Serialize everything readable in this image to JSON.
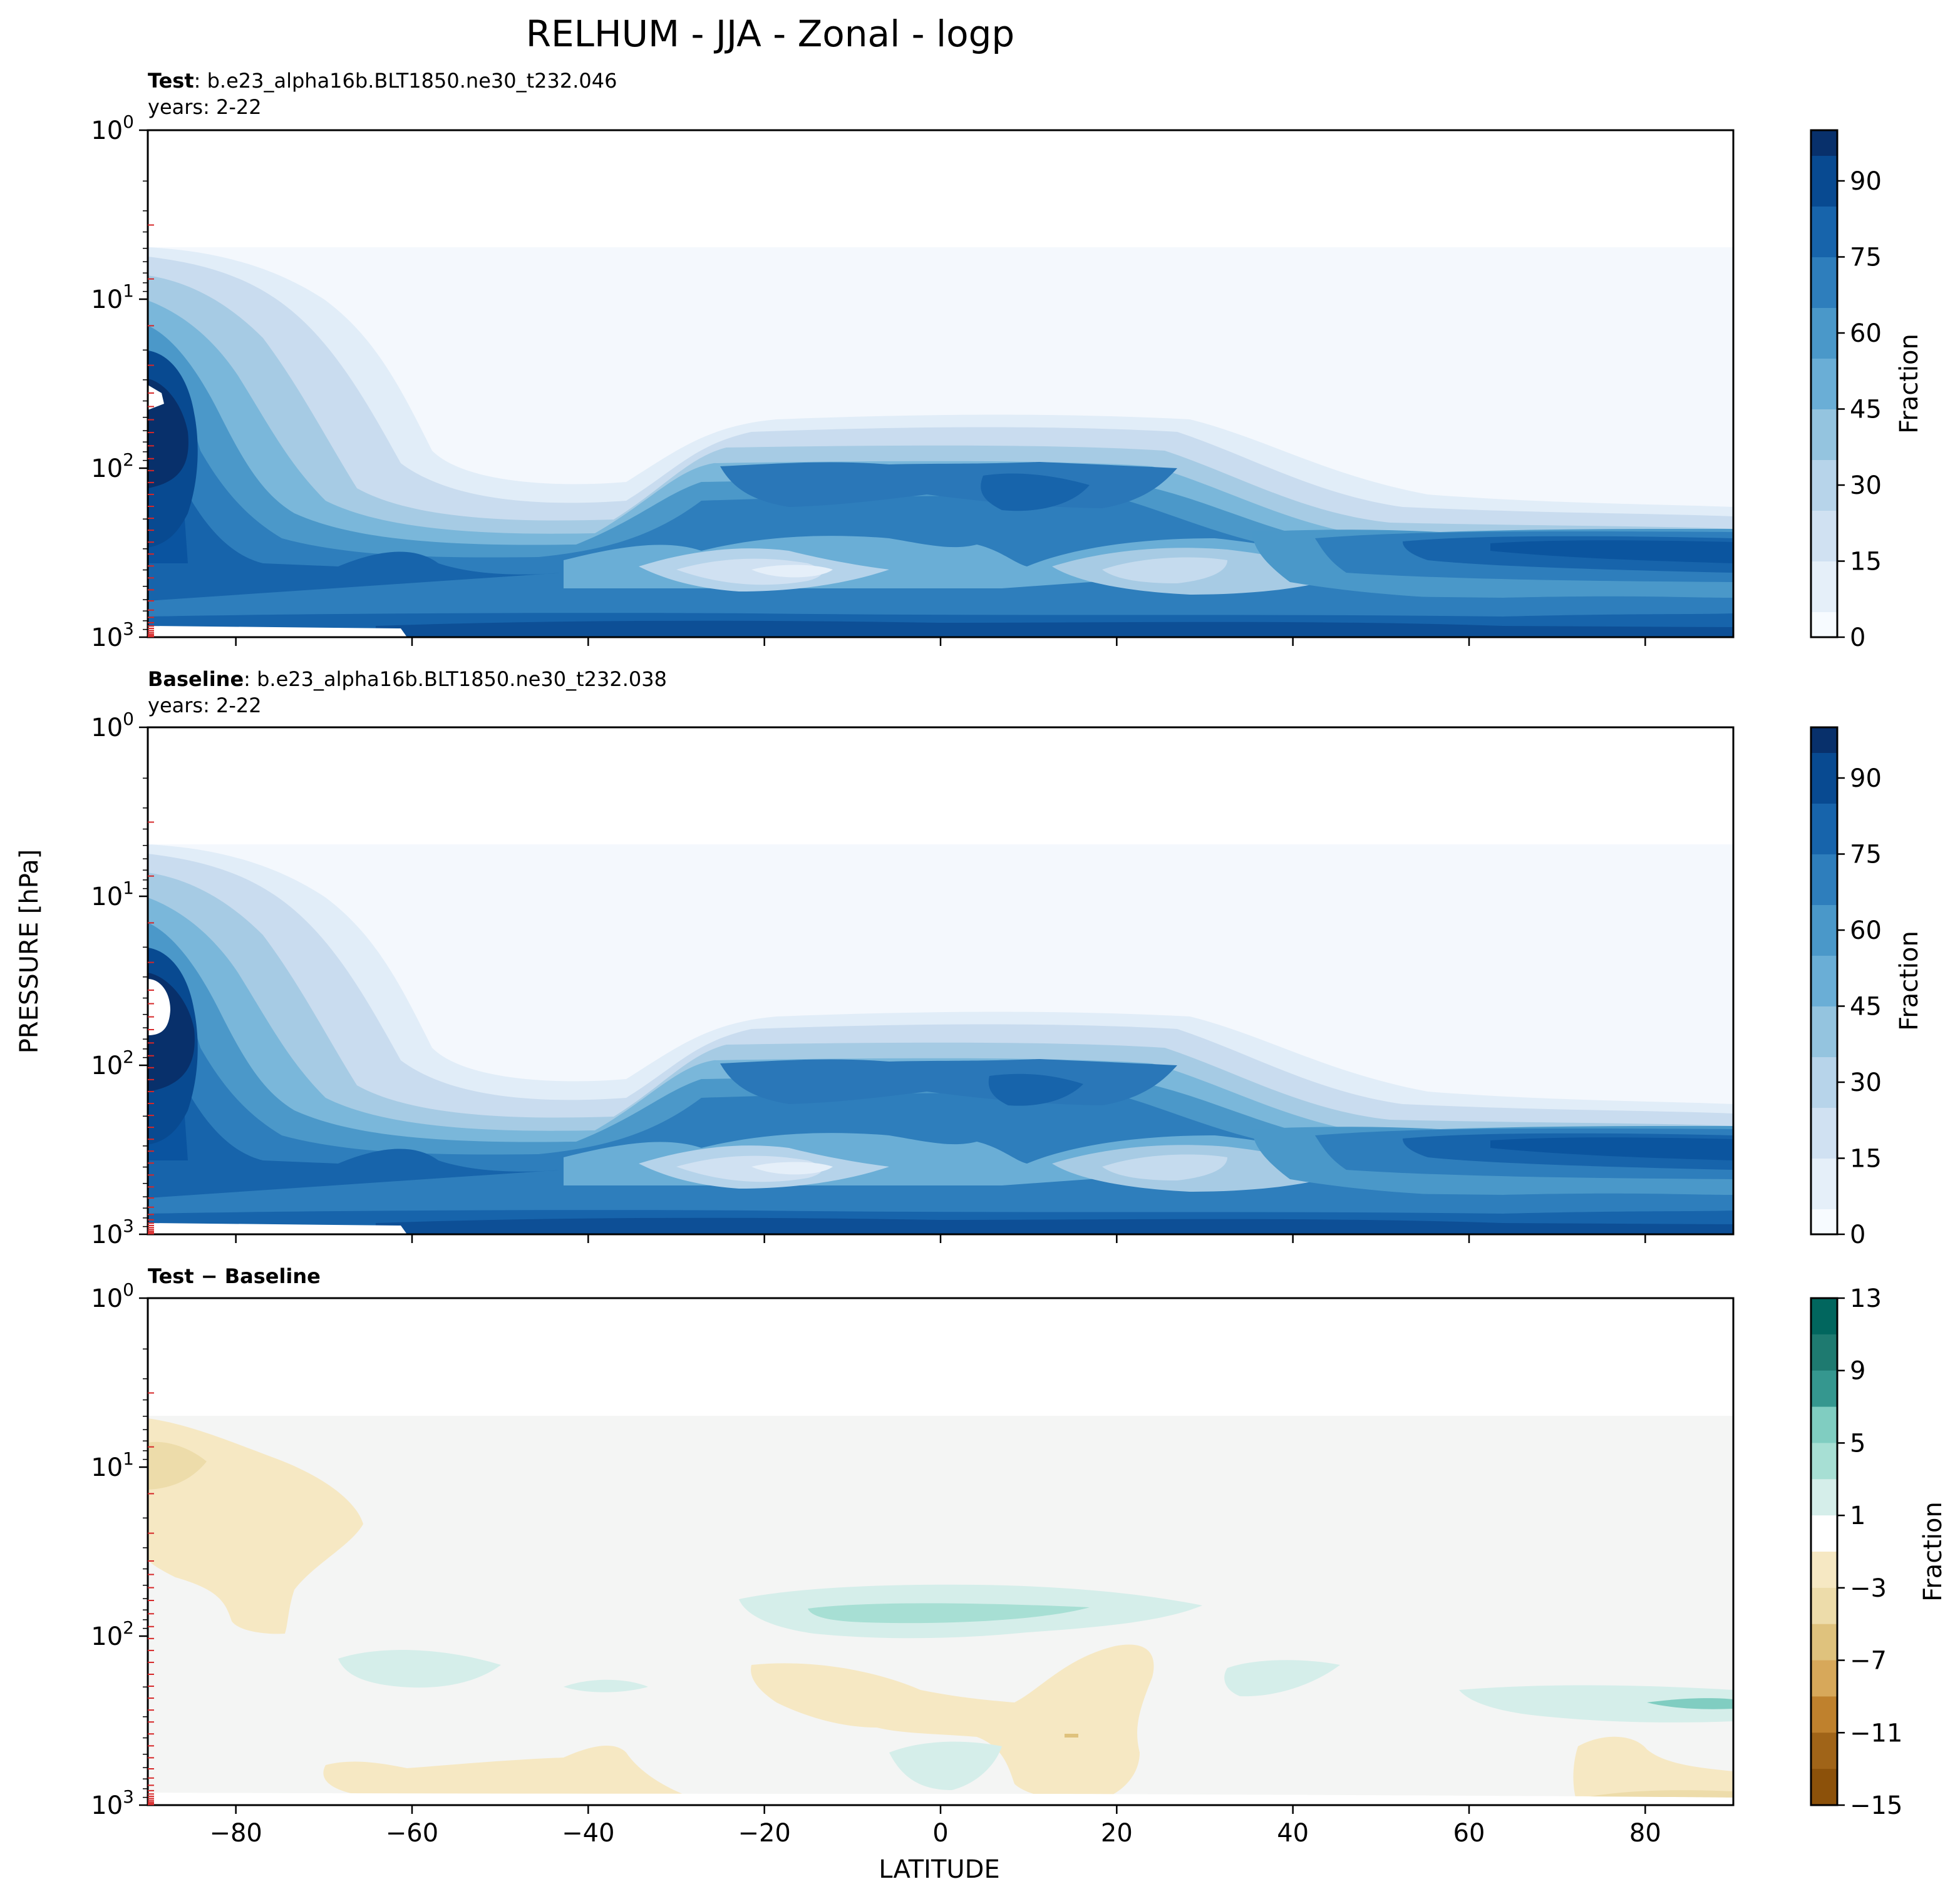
{
  "figure": {
    "title": "RELHUM - JJA - Zonal - logp"
  },
  "axes": {
    "ylabel": "PRESSURE [hPa]",
    "xlabel": "LATITUDE",
    "x_ticks": [
      "−80",
      "−60",
      "−40",
      "−20",
      "0",
      "20",
      "40",
      "60",
      "80"
    ],
    "y_tick_base": "10",
    "y_tick_exponents": [
      "0",
      "1",
      "2",
      "3"
    ]
  },
  "colors": {
    "blues": [
      "#f7fbff",
      "#e5eff9",
      "#d0e1f2",
      "#b7d4ea",
      "#94c4df",
      "#6aaed6",
      "#4a98c9",
      "#2e7ebc",
      "#1764ab",
      "#084a91",
      "#08306b"
    ],
    "diff": {
      "neg3": "#f6e8c3",
      "neg7": "#dfc27d",
      "neg11": "#bf812d",
      "neg15": "#8c510a",
      "zero": "#f4f5f4",
      "pos5": "#d5eeea",
      "pos9": "#80cdc1",
      "pos13": "#35978f"
    },
    "level_marks": "#d62728"
  },
  "chart_data": [
    {
      "type": "heatmap",
      "subtitle_bold": "Test",
      "subtitle_rest": ": b.e23_alpha16b.BLT1850.ne30_t232.046",
      "years": "years: 2-22",
      "x_range": [
        -90,
        90
      ],
      "y_range_hPa": [
        1,
        1000
      ],
      "y_scale": "log",
      "colorbar": {
        "label": "Fraction",
        "ticks": [
          "0",
          "15",
          "30",
          "45",
          "60",
          "75",
          "90"
        ],
        "range": [
          0,
          100
        ]
      },
      "features": [
        {
          "region": "upper atmosphere 5-50 hPa, south polar",
          "lat_range": [
            -90,
            -60
          ],
          "value_max": 96
        },
        {
          "region": "tropical tropopause layer ~100 hPa",
          "lat_range": [
            -20,
            30
          ],
          "value": 75
        },
        {
          "region": "subtropical mid-troposphere minima ~400 hPa",
          "lat_range": [
            -25,
            25
          ],
          "value": 25
        },
        {
          "region": "Arctic lower troposphere ~300 hPa",
          "lat_range": [
            60,
            90
          ],
          "value": 80
        },
        {
          "region": "boundary layer ~900 hPa",
          "lat_range": [
            -60,
            90
          ],
          "value": 85
        }
      ]
    },
    {
      "type": "heatmap",
      "subtitle_bold": "Baseline",
      "subtitle_rest": ": b.e23_alpha16b.BLT1850.ne30_t232.038",
      "years": "years: 2-22",
      "x_range": [
        -90,
        90
      ],
      "y_range_hPa": [
        1,
        1000
      ],
      "y_scale": "log",
      "colorbar": {
        "label": "Fraction",
        "ticks": [
          "0",
          "15",
          "30",
          "45",
          "60",
          "75",
          "90"
        ],
        "range": [
          0,
          100
        ]
      },
      "features": [
        {
          "region": "upper atmosphere 5-50 hPa, south polar",
          "lat_range": [
            -90,
            -60
          ],
          "value_max": 96
        },
        {
          "region": "tropical tropopause layer ~100 hPa",
          "lat_range": [
            -20,
            30
          ],
          "value": 73
        },
        {
          "region": "subtropical mid-troposphere minima ~400 hPa",
          "lat_range": [
            -25,
            25
          ],
          "value": 25
        },
        {
          "region": "Arctic lower troposphere ~300 hPa",
          "lat_range": [
            60,
            90
          ],
          "value": 80
        },
        {
          "region": "boundary layer ~900 hPa",
          "lat_range": [
            -60,
            90
          ],
          "value": 85
        }
      ]
    },
    {
      "type": "heatmap",
      "subtitle_bold": "Test − Baseline",
      "x_range": [
        -90,
        90
      ],
      "y_range_hPa": [
        1,
        1000
      ],
      "y_scale": "log",
      "colorbar": {
        "label": "Fraction",
        "ticks": [
          "13",
          "9",
          "5",
          "1",
          "−3",
          "−7",
          "−11",
          "−15"
        ],
        "range": [
          -15,
          13
        ]
      },
      "features": [
        {
          "region": "south polar stratosphere",
          "lat_range": [
            -90,
            -65
          ],
          "value": -3
        },
        {
          "region": "tropical tropopause ~70 hPa",
          "lat_range": [
            -22,
            30
          ],
          "value": 5
        },
        {
          "region": "southern mid-latitudes ~200 hPa",
          "lat_range": [
            -68,
            -50
          ],
          "value": 3
        },
        {
          "region": "tropics ~250 hPa",
          "lat_range": [
            -22,
            25
          ],
          "value": -2
        },
        {
          "region": "Arctic ~250 hPa",
          "lat_range": [
            60,
            90
          ],
          "value": 4
        },
        {
          "region": "near surface Arctic",
          "lat_range": [
            70,
            90
          ],
          "value": -3
        }
      ]
    }
  ]
}
